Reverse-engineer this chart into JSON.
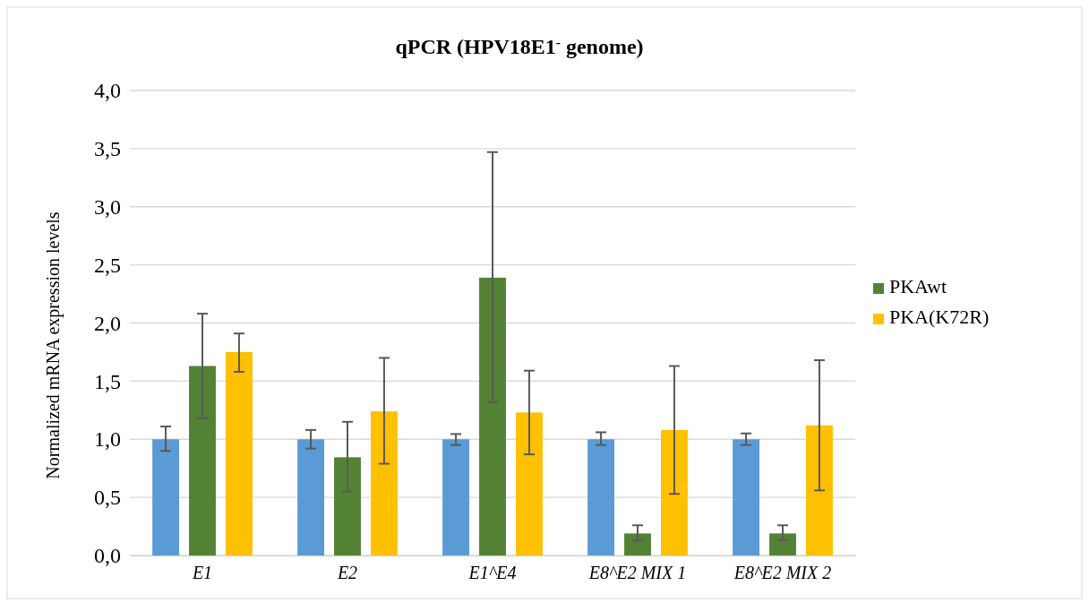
{
  "chart_data": {
    "type": "bar",
    "title": "qPCR (HPV18E1$^{-}$ genome)",
    "ylabel": "Normalized mRNA expression levels",
    "categories": [
      "E1",
      "E2",
      "E1^E4",
      "E8^E2 MIX 1",
      "E8^E2 MIX 2"
    ],
    "series": [
      {
        "color": "#5b9bd5",
        "values": [
          1.0,
          1.0,
          1.0,
          1.0,
          1.0
        ],
        "errors": [
          [
            0.9,
            1.11
          ],
          [
            0.92,
            1.08
          ],
          [
            0.95,
            1.045
          ],
          [
            0.95,
            1.06
          ],
          [
            0.95,
            1.05
          ]
        ]
      },
      {
        "name": "PKAwt",
        "color": "#548235",
        "values": [
          1.63,
          0.845,
          2.39,
          0.19,
          0.19
        ],
        "errors": [
          [
            1.18,
            2.08
          ],
          [
            0.55,
            1.15
          ],
          [
            1.32,
            3.47
          ],
          [
            0.13,
            0.26
          ],
          [
            0.13,
            0.26
          ]
        ]
      },
      {
        "name": "PKA(K72R)",
        "color": "#ffc000",
        "values": [
          1.75,
          1.24,
          1.23,
          1.08,
          1.12
        ],
        "errors": [
          [
            1.58,
            1.91
          ],
          [
            0.79,
            1.7
          ],
          [
            0.87,
            1.59
          ],
          [
            0.53,
            1.63
          ],
          [
            0.56,
            1.68
          ]
        ]
      }
    ],
    "ylim": [
      0,
      4
    ],
    "yticks": [
      {
        "value": 0,
        "label": "0,0"
      },
      {
        "value": 0.5,
        "label": "0,5"
      },
      {
        "value": 1,
        "label": "1,0"
      },
      {
        "value": 1.5,
        "label": "1,5"
      },
      {
        "value": 2,
        "label": "2,0"
      },
      {
        "value": 2.5,
        "label": "2,5"
      },
      {
        "value": 3,
        "label": "3,0"
      },
      {
        "value": 3.5,
        "label": "3,5"
      },
      {
        "value": 4,
        "label": "4,0"
      }
    ],
    "grid": "y",
    "legend": "right"
  }
}
